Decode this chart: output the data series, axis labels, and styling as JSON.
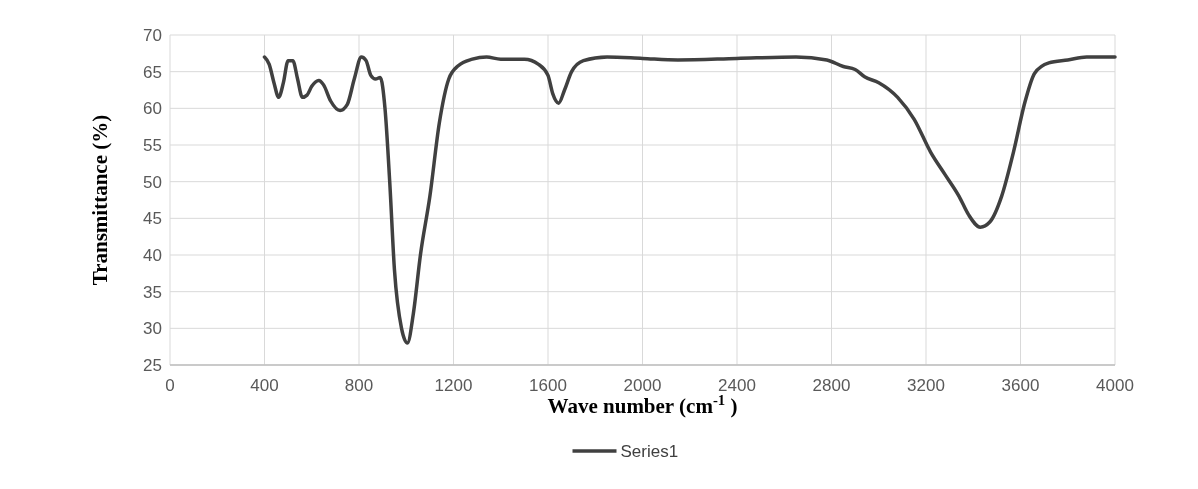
{
  "chart_data": {
    "type": "line",
    "xlabel": "Wave number (cm$^{-1}$ )",
    "ylabel": "Transmittance (%)",
    "xlim": [
      0,
      4000
    ],
    "xticks": [
      0,
      400,
      800,
      1200,
      1600,
      2000,
      2400,
      2800,
      3200,
      3600,
      4000
    ],
    "ylim": [
      25,
      70
    ],
    "yticks": [
      25,
      30,
      35,
      40,
      45,
      50,
      55,
      60,
      65,
      70
    ],
    "grid": true,
    "legend": "bottom",
    "series": [
      {
        "name": "Series1",
        "color": "#404040",
        "x": [
          400,
          420,
          440,
          460,
          480,
          500,
          520,
          540,
          560,
          580,
          600,
          630,
          650,
          680,
          720,
          750,
          780,
          810,
          830,
          850,
          870,
          890,
          910,
          930,
          950,
          980,
          1005,
          1030,
          1060,
          1100,
          1140,
          1180,
          1220,
          1280,
          1340,
          1400,
          1500,
          1560,
          1600,
          1620,
          1645,
          1670,
          1700,
          1750,
          1850,
          2000,
          2150,
          2400,
          2650,
          2780,
          2850,
          2900,
          2940,
          3000,
          3080,
          3150,
          3220,
          3280,
          3340,
          3380,
          3430,
          3470,
          3520,
          3570,
          3620,
          3660,
          3720,
          3800,
          3880,
          4000
        ],
        "values": [
          67,
          66,
          63.5,
          61.5,
          63.5,
          66.5,
          66.5,
          64,
          61.5,
          61.8,
          63,
          63.8,
          63.2,
          61,
          59.7,
          60.5,
          64,
          67,
          66.5,
          64.5,
          64,
          64.2,
          60,
          50,
          38,
          30,
          28,
          32,
          40,
          48,
          58,
          64,
          65.8,
          66.7,
          67,
          66.7,
          66.7,
          66,
          64.5,
          62,
          60.7,
          62.5,
          65,
          66.5,
          67,
          66.8,
          66.6,
          66.8,
          67,
          66.6,
          65.7,
          65.3,
          64.3,
          63.5,
          61.5,
          58.5,
          54,
          51,
          48,
          45.5,
          43.8,
          44.5,
          48,
          54,
          61,
          64.8,
          66.2,
          66.6,
          67,
          67
        ]
      }
    ]
  }
}
